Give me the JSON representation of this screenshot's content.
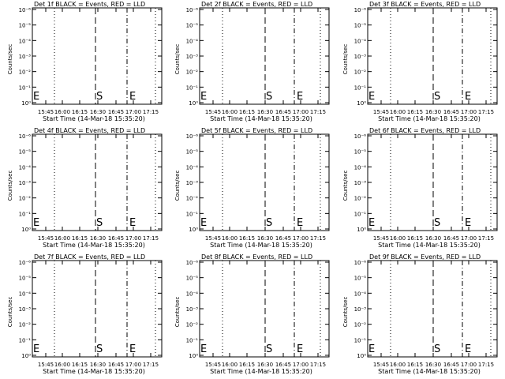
{
  "common": {
    "ylabel": "Counts/sec",
    "xlabel": "Start Time (14-Mar-18 15:35:20)",
    "x_ticks": [
      "15:45",
      "16:00",
      "16:15",
      "16:30",
      "16:45",
      "17:00",
      "17:15"
    ],
    "y_ticks": [
      "10⁰",
      "10⁻¹",
      "10⁻²",
      "10⁻³",
      "10⁻⁴",
      "10⁻⁵",
      "10⁻⁶"
    ],
    "markers": {
      "start": "S",
      "end": "E",
      "left_end": "E"
    }
  },
  "chart_data": [
    {
      "type": "line",
      "title": "Det 1f BLACK = Events, RED = LLD",
      "ylabel": "Counts/sec",
      "xlabel": "Start Time (14-Mar-18 15:35:20)",
      "log_y": true,
      "series": []
    },
    {
      "type": "line",
      "title": "Det 2f BLACK = Events, RED = LLD",
      "ylabel": "Counts/sec",
      "xlabel": "Start Time (14-Mar-18 15:35:20)",
      "log_y": true,
      "series": []
    },
    {
      "type": "line",
      "title": "Det 3f BLACK = Events, RED = LLD",
      "ylabel": "Counts/sec",
      "xlabel": "Start Time (14-Mar-18 15:35:20)",
      "log_y": true,
      "series": []
    },
    {
      "type": "line",
      "title": "Det 4f BLACK = Events, RED = LLD",
      "ylabel": "Counts/sec",
      "xlabel": "Start Time (14-Mar-18 15:35:20)",
      "log_y": true,
      "series": []
    },
    {
      "type": "line",
      "title": "Det 5f BLACK = Events, RED = LLD",
      "ylabel": "Counts/sec",
      "xlabel": "Start Time (14-Mar-18 15:35:20)",
      "log_y": true,
      "series": []
    },
    {
      "type": "line",
      "title": "Det 6f BLACK = Events, RED = LLD",
      "ylabel": "Counts/sec",
      "xlabel": "Start Time (14-Mar-18 15:35:20)",
      "log_y": true,
      "series": []
    },
    {
      "type": "line",
      "title": "Det 7f BLACK = Events, RED = LLD",
      "ylabel": "Counts/sec",
      "xlabel": "Start Time (14-Mar-18 15:35:20)",
      "log_y": true,
      "series": []
    },
    {
      "type": "line",
      "title": "Det 8f BLACK = Events, RED = LLD",
      "ylabel": "Counts/sec",
      "xlabel": "Start Time (14-Mar-18 15:35:20)",
      "log_y": true,
      "series": []
    },
    {
      "type": "line",
      "title": "Det 9f BLACK = Events, RED = LLD",
      "ylabel": "Counts/sec",
      "xlabel": "Start Time (14-Mar-18 15:35:20)",
      "log_y": true,
      "series": []
    }
  ]
}
